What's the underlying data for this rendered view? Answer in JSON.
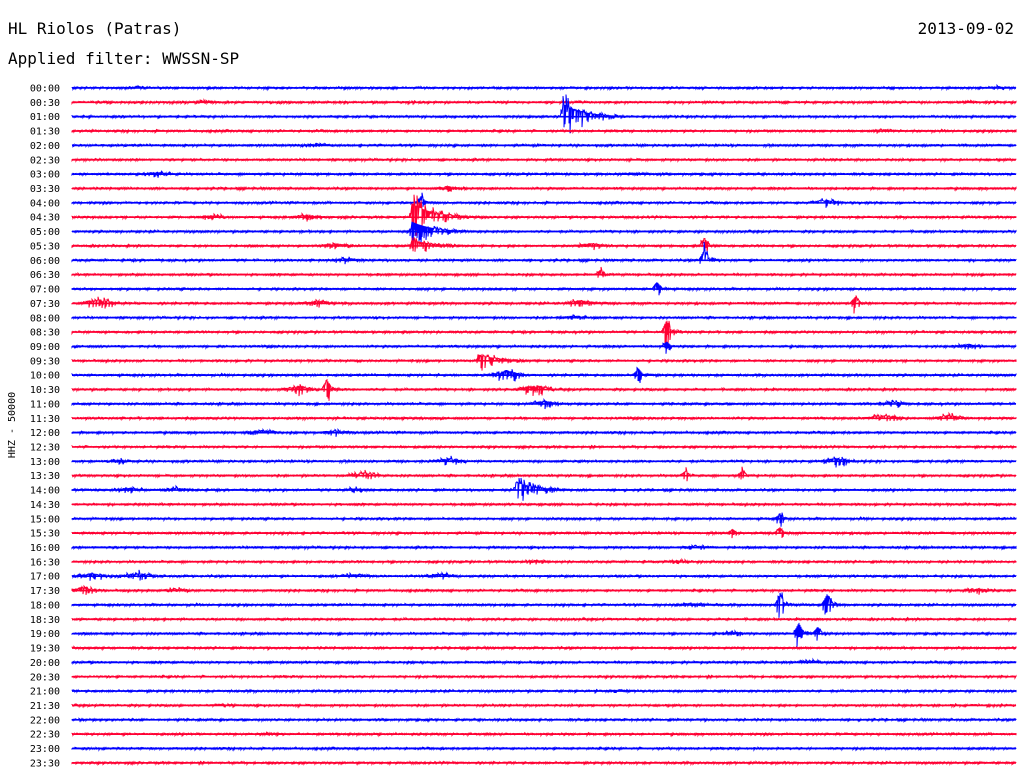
{
  "header": {
    "station": "HL Riolos (Patras)",
    "date": "2013-09-02",
    "filter": "Applied filter: WWSSN-SP"
  },
  "chart_data": {
    "type": "line",
    "title": "HL Riolos (Patras)",
    "ylabel": "HHZ - 50000",
    "row_labels": [
      "00:00",
      "00:30",
      "01:00",
      "01:30",
      "02:00",
      "02:30",
      "03:00",
      "03:30",
      "04:00",
      "04:30",
      "05:00",
      "05:30",
      "06:00",
      "06:30",
      "07:00",
      "07:30",
      "08:00",
      "08:30",
      "09:00",
      "09:30",
      "10:00",
      "10:30",
      "11:00",
      "11:30",
      "12:00",
      "12:30",
      "13:00",
      "13:30",
      "14:00",
      "14:30",
      "15:00",
      "15:30",
      "16:00",
      "16:30",
      "17:00",
      "17:30",
      "18:00",
      "18:30",
      "19:00",
      "19:30",
      "20:00",
      "20:30",
      "21:00",
      "21:30",
      "22:00",
      "22:30",
      "23:00",
      "23:30"
    ],
    "series_colors": {
      "full_hour": "#0000ff",
      "half_hour": "#ff0033"
    },
    "x_unit": "fraction of 30-minute trace",
    "events": [
      {
        "row": 0,
        "x": 0.07,
        "amp": 3,
        "kind": "burst"
      },
      {
        "row": 0,
        "x": 0.98,
        "amp": 3,
        "kind": "burst"
      },
      {
        "row": 1,
        "x": 0.14,
        "amp": 3,
        "kind": "burst"
      },
      {
        "row": 1,
        "x": 0.95,
        "amp": 3,
        "kind": "burst"
      },
      {
        "row": 2,
        "x": 0.52,
        "amp": 26,
        "kind": "quake"
      },
      {
        "row": 3,
        "x": 0.86,
        "amp": 4,
        "kind": "burst"
      },
      {
        "row": 4,
        "x": 0.26,
        "amp": 4,
        "kind": "burst"
      },
      {
        "row": 6,
        "x": 0.09,
        "amp": 5,
        "kind": "burst"
      },
      {
        "row": 6,
        "x": 0.6,
        "amp": 3,
        "kind": "burst"
      },
      {
        "row": 7,
        "x": 0.4,
        "amp": 5,
        "kind": "burst"
      },
      {
        "row": 8,
        "x": 0.37,
        "amp": 14,
        "kind": "spike"
      },
      {
        "row": 8,
        "x": 0.8,
        "amp": 7,
        "kind": "burst"
      },
      {
        "row": 9,
        "x": 0.15,
        "amp": 5,
        "kind": "burst"
      },
      {
        "row": 9,
        "x": 0.25,
        "amp": 6,
        "kind": "burst"
      },
      {
        "row": 9,
        "x": 0.36,
        "amp": 28,
        "kind": "quake"
      },
      {
        "row": 10,
        "x": 0.36,
        "amp": 20,
        "kind": "quake"
      },
      {
        "row": 11,
        "x": 0.28,
        "amp": 6,
        "kind": "burst"
      },
      {
        "row": 11,
        "x": 0.36,
        "amp": 12,
        "kind": "quake"
      },
      {
        "row": 11,
        "x": 0.55,
        "amp": 6,
        "kind": "burst"
      },
      {
        "row": 11,
        "x": 0.67,
        "amp": 16,
        "kind": "spike"
      },
      {
        "row": 12,
        "x": 0.29,
        "amp": 5,
        "kind": "burst"
      },
      {
        "row": 12,
        "x": 0.67,
        "amp": 22,
        "kind": "spike"
      },
      {
        "row": 13,
        "x": 0.56,
        "amp": 10,
        "kind": "spike"
      },
      {
        "row": 14,
        "x": 0.62,
        "amp": 14,
        "kind": "spike"
      },
      {
        "row": 15,
        "x": 0.03,
        "amp": 9,
        "kind": "burst"
      },
      {
        "row": 15,
        "x": 0.26,
        "amp": 7,
        "kind": "burst"
      },
      {
        "row": 15,
        "x": 0.54,
        "amp": 7,
        "kind": "burst"
      },
      {
        "row": 15,
        "x": 0.83,
        "amp": 14,
        "kind": "spike"
      },
      {
        "row": 16,
        "x": 0.53,
        "amp": 5,
        "kind": "burst"
      },
      {
        "row": 17,
        "x": 0.63,
        "amp": 24,
        "kind": "spike"
      },
      {
        "row": 18,
        "x": 0.63,
        "amp": 10,
        "kind": "spike"
      },
      {
        "row": 18,
        "x": 0.95,
        "amp": 5,
        "kind": "burst"
      },
      {
        "row": 19,
        "x": 0.43,
        "amp": 13,
        "kind": "quake"
      },
      {
        "row": 20,
        "x": 0.46,
        "amp": 10,
        "kind": "burst"
      },
      {
        "row": 20,
        "x": 0.6,
        "amp": 14,
        "kind": "spike"
      },
      {
        "row": 21,
        "x": 0.24,
        "amp": 8,
        "kind": "burst"
      },
      {
        "row": 21,
        "x": 0.27,
        "amp": 20,
        "kind": "spike"
      },
      {
        "row": 21,
        "x": 0.49,
        "amp": 10,
        "kind": "burst"
      },
      {
        "row": 22,
        "x": 0.5,
        "amp": 6,
        "kind": "burst"
      },
      {
        "row": 22,
        "x": 0.87,
        "amp": 5,
        "kind": "burst"
      },
      {
        "row": 23,
        "x": 0.86,
        "amp": 7,
        "kind": "burst"
      },
      {
        "row": 23,
        "x": 0.93,
        "amp": 7,
        "kind": "burst"
      },
      {
        "row": 24,
        "x": 0.2,
        "amp": 6,
        "kind": "burst"
      },
      {
        "row": 24,
        "x": 0.28,
        "amp": 5,
        "kind": "burst"
      },
      {
        "row": 26,
        "x": 0.05,
        "amp": 4,
        "kind": "burst"
      },
      {
        "row": 26,
        "x": 0.4,
        "amp": 6,
        "kind": "burst"
      },
      {
        "row": 26,
        "x": 0.81,
        "amp": 8,
        "kind": "burst"
      },
      {
        "row": 27,
        "x": 0.31,
        "amp": 7,
        "kind": "burst"
      },
      {
        "row": 27,
        "x": 0.65,
        "amp": 10,
        "kind": "spike"
      },
      {
        "row": 27,
        "x": 0.71,
        "amp": 10,
        "kind": "spike"
      },
      {
        "row": 28,
        "x": 0.06,
        "amp": 5,
        "kind": "burst"
      },
      {
        "row": 28,
        "x": 0.11,
        "amp": 5,
        "kind": "burst"
      },
      {
        "row": 28,
        "x": 0.3,
        "amp": 4,
        "kind": "burst"
      },
      {
        "row": 28,
        "x": 0.47,
        "amp": 16,
        "kind": "quake"
      },
      {
        "row": 30,
        "x": 0.75,
        "amp": 10,
        "kind": "spike"
      },
      {
        "row": 31,
        "x": 0.7,
        "amp": 8,
        "kind": "spike"
      },
      {
        "row": 31,
        "x": 0.75,
        "amp": 12,
        "kind": "spike"
      },
      {
        "row": 32,
        "x": 0.66,
        "amp": 4,
        "kind": "burst"
      },
      {
        "row": 33,
        "x": 0.49,
        "amp": 4,
        "kind": "burst"
      },
      {
        "row": 33,
        "x": 0.64,
        "amp": 4,
        "kind": "burst"
      },
      {
        "row": 34,
        "x": 0.02,
        "amp": 7,
        "kind": "burst"
      },
      {
        "row": 34,
        "x": 0.07,
        "amp": 7,
        "kind": "burst"
      },
      {
        "row": 34,
        "x": 0.3,
        "amp": 5,
        "kind": "burst"
      },
      {
        "row": 34,
        "x": 0.39,
        "amp": 6,
        "kind": "burst"
      },
      {
        "row": 35,
        "x": 0.01,
        "amp": 8,
        "kind": "burst"
      },
      {
        "row": 35,
        "x": 0.11,
        "amp": 5,
        "kind": "burst"
      },
      {
        "row": 35,
        "x": 0.96,
        "amp": 5,
        "kind": "burst"
      },
      {
        "row": 36,
        "x": 0.66,
        "amp": 5,
        "kind": "burst"
      },
      {
        "row": 36,
        "x": 0.75,
        "amp": 20,
        "kind": "spike"
      },
      {
        "row": 36,
        "x": 0.8,
        "amp": 22,
        "kind": "spike"
      },
      {
        "row": 38,
        "x": 0.7,
        "amp": 4,
        "kind": "burst"
      },
      {
        "row": 38,
        "x": 0.77,
        "amp": 22,
        "kind": "spike"
      },
      {
        "row": 38,
        "x": 0.79,
        "amp": 14,
        "kind": "spike"
      },
      {
        "row": 40,
        "x": 0.78,
        "amp": 4,
        "kind": "burst"
      },
      {
        "row": 42,
        "x": 0.58,
        "amp": 3,
        "kind": "burst"
      },
      {
        "row": 43,
        "x": 0.16,
        "amp": 3,
        "kind": "burst"
      },
      {
        "row": 45,
        "x": 0.21,
        "amp": 3,
        "kind": "burst"
      }
    ]
  }
}
